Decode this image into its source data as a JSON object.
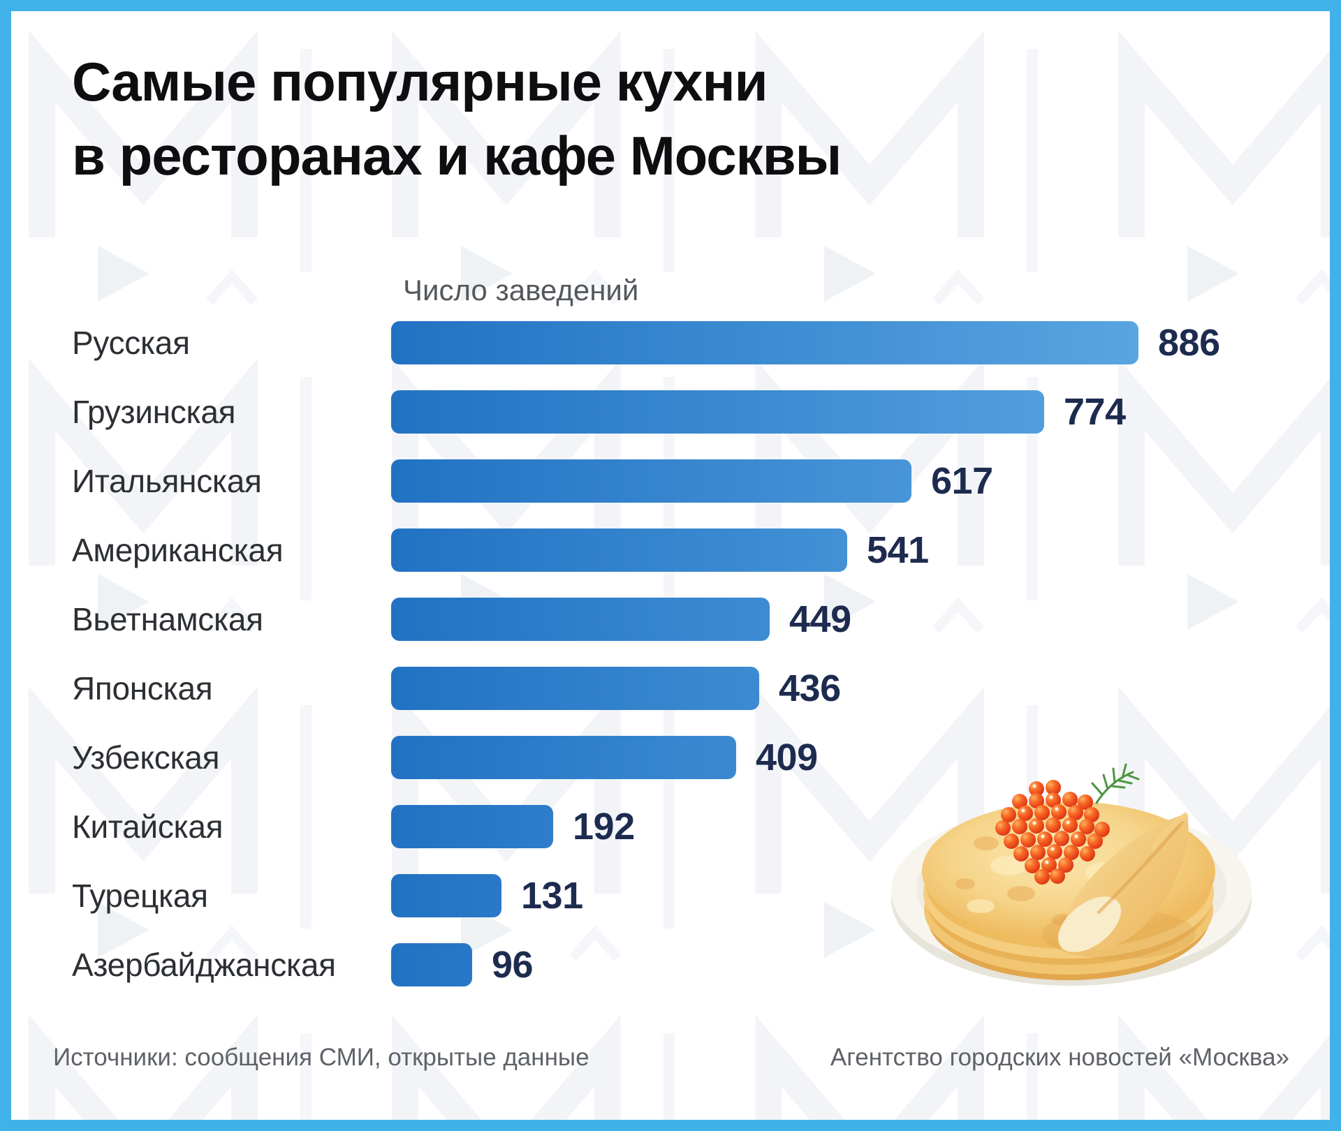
{
  "frame": {
    "border_color": "#41b1e9",
    "background_color": "#ffffff",
    "watermark": "moscow-agency-m-logo-pattern"
  },
  "title": {
    "line1": "Самые популярные кухни",
    "line2": "в ресторанах и кафе Москвы"
  },
  "chart_data": {
    "type": "bar",
    "orientation": "horizontal",
    "value_axis_label": "Число заведений",
    "categories": [
      "Русская",
      "Грузинская",
      "Итальянская",
      "Американская",
      "Вьетнамская",
      "Японская",
      "Узбекская",
      "Китайская",
      "Турецкая",
      "Азербайджанская"
    ],
    "values": [
      886,
      774,
      617,
      541,
      449,
      436,
      409,
      192,
      131,
      96
    ],
    "max_value": 886,
    "xlim": [
      0,
      886
    ],
    "grid": false,
    "legend_position": "none",
    "data_labels": "outside-end",
    "bar_color_start": "#2272c3",
    "bar_color_end": "#58a5e1",
    "value_label_color": "#1d2b4f",
    "category_label_color": "#2c2f33"
  },
  "illustration": {
    "name": "blini-with-red-caviar-on-plate"
  },
  "footer": {
    "sources": "Источники: сообщения СМИ, открытые данные",
    "agency": "Агентство городских новостей «Москва»"
  }
}
